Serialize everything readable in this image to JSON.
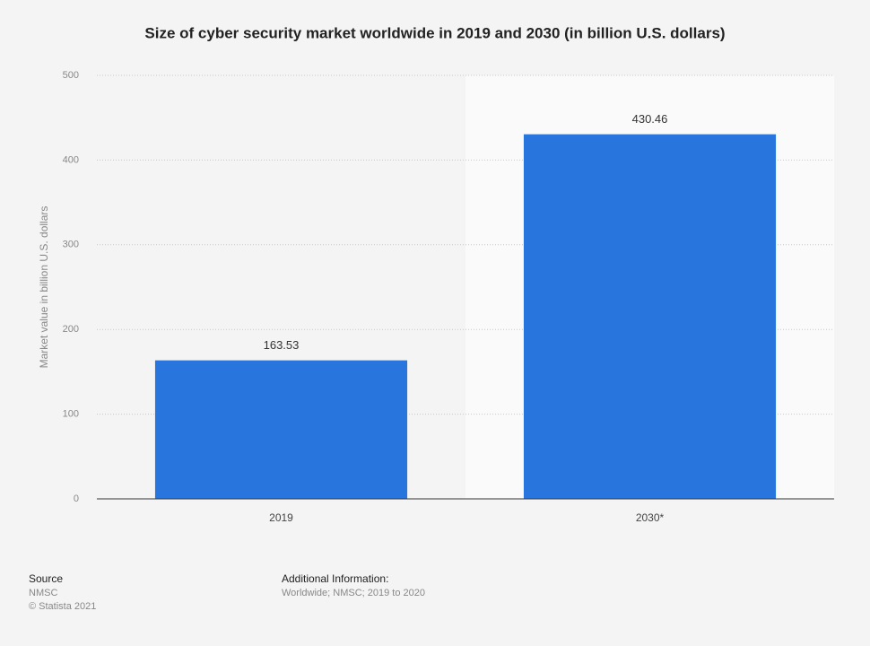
{
  "chart_data": {
    "type": "bar",
    "title": "Size of cyber security market worldwide in 2019 and 2030 (in billion U.S. dollars)",
    "y_label": "Market value in billion U.S. dollars",
    "categories": [
      "2019",
      "2030*"
    ],
    "values": [
      163.53,
      430.46
    ],
    "color": "#2876dd",
    "ylim": [
      0,
      500
    ],
    "yticks": [
      0,
      100,
      200,
      300,
      400,
      500
    ],
    "grid": true
  },
  "footer": {
    "source_title": "Source",
    "source": "NMSC",
    "copyright": "© Statista 2021",
    "info_title": "Additional Information:",
    "info": "Worldwide; NMSC; 2019 to 2020"
  }
}
